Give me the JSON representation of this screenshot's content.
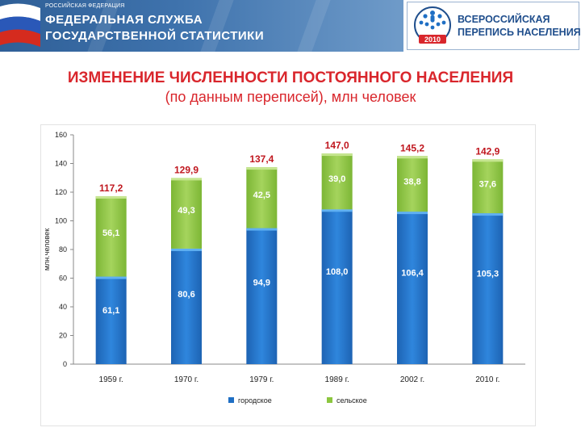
{
  "header": {
    "small_text": "РОССИЙСКАЯ ФЕДЕРАЦИЯ",
    "title_line1": "ФЕДЕРАЛЬНАЯ СЛУЖБА",
    "title_line2": "ГОСУДАРСТВЕННОЙ СТАТИСТИКИ",
    "logo_line1": "ВСЕРОССИЙСКАЯ",
    "logo_line2": "ПЕРЕПИСЬ НАСЕЛЕНИЯ",
    "logo_year": "2010"
  },
  "slide": {
    "title": "ИЗМЕНЕНИЕ ЧИСЛЕННОСТИ ПОСТОЯННОГО НАСЕЛЕНИЯ",
    "subtitle": "(по данным переписей), млн человек"
  },
  "colors": {
    "urban": "#1f6fc4",
    "rural": "#8cc63f",
    "title_red": "#d9262c",
    "header_blue": "#3f73ad"
  },
  "chart_data": {
    "type": "bar",
    "stacked": true,
    "title": "",
    "xlabel": "",
    "ylabel": "млн.человек",
    "ylim": [
      0,
      160
    ],
    "yticks": [
      0,
      20,
      40,
      60,
      80,
      100,
      120,
      140,
      160
    ],
    "categories": [
      "1959 г.",
      "1970 г.",
      "1979 г.",
      "1989 г.",
      "2002 г.",
      "2010 г."
    ],
    "series": [
      {
        "name": "городское",
        "values": [
          61.1,
          80.6,
          94.9,
          108.0,
          106.4,
          105.3
        ],
        "labels": [
          "61,1",
          "80,6",
          "94,9",
          "108,0",
          "106,4",
          "105,3"
        ]
      },
      {
        "name": "сельское",
        "values": [
          56.1,
          49.3,
          42.5,
          39.0,
          38.8,
          37.6
        ],
        "labels": [
          "56,1",
          "49,3",
          "42,5",
          "39,0",
          "38,8",
          "37,6"
        ]
      }
    ],
    "totals": [
      117.2,
      129.9,
      137.4,
      147.0,
      145.2,
      142.9
    ],
    "total_labels": [
      "117,2",
      "129,9",
      "137,4",
      "147,0",
      "145,2",
      "142,9"
    ],
    "legend": [
      "городское",
      "сельское"
    ],
    "legend_position": "bottom",
    "grid": false
  }
}
